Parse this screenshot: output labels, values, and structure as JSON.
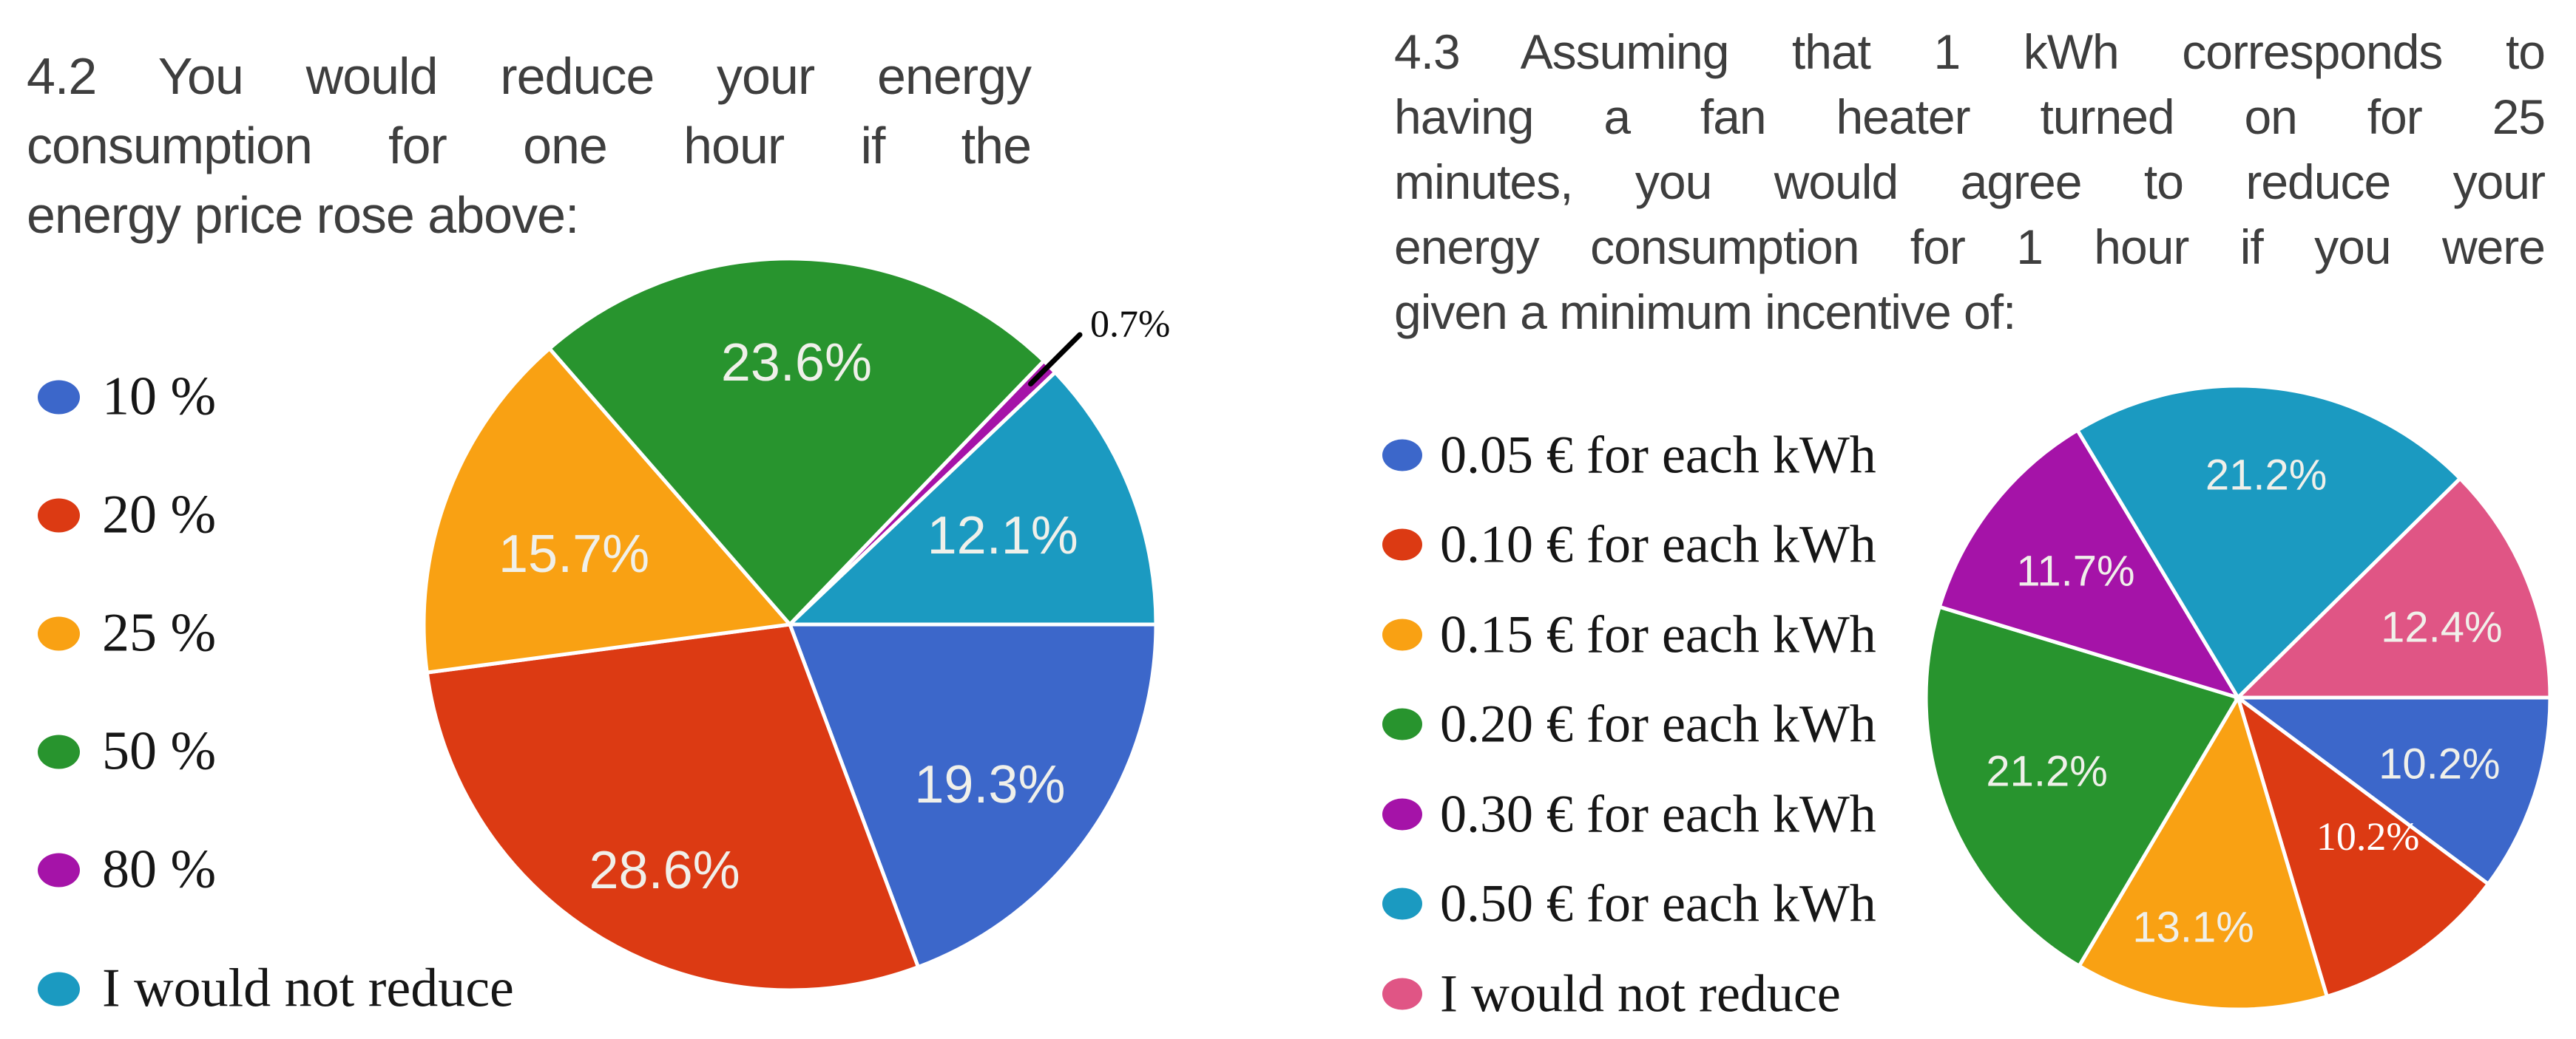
{
  "page": {
    "background_color": "#ffffff",
    "title_color": "#3e3e3e",
    "legend_text_color": "#161616",
    "slice_label_color": "#f0f0ea"
  },
  "chart_data": [
    {
      "type": "pie",
      "title": "4.2 You would reduce your energy consumption for one hour if the energy price rose above:",
      "title_lines": [
        "4.2 You would reduce your energy",
        "consumption for one hour if the",
        "energy price rose above:"
      ],
      "legend_position": "left",
      "categories": [
        "10 %",
        "20 %",
        "25 %",
        "50 %",
        "80 %",
        "I would not reduce"
      ],
      "values": [
        19.3,
        28.6,
        15.7,
        23.6,
        0.7,
        12.1
      ],
      "labels": [
        "19.3%",
        "28.6%",
        "15.7%",
        "23.6%",
        "0.7%",
        "12.1%"
      ],
      "colors": [
        "#3c67ca",
        "#dc3a13",
        "#f9a113",
        "#28942e",
        "#a513a8",
        "#1b9ac1"
      ],
      "start_angle": "3-oclock-clockwise",
      "label_layout": [
        {
          "r": 0.7,
          "angle": 38.7
        },
        {
          "r": 0.754,
          "angle": 117
        },
        {
          "r": 0.62,
          "angle": 198
        },
        {
          "r": 0.715,
          "angle": null
        },
        {
          "r": 1.16,
          "angle": 315,
          "style": "callout"
        },
        {
          "r": 0.63,
          "angle": 337.3
        }
      ],
      "callout": {
        "slice": 4,
        "line_r": [
          0.93,
          1.12
        ],
        "line_width": 7,
        "line_color": "#000000"
      }
    },
    {
      "type": "pie",
      "title": "4.3 Assuming that 1 kWh corresponds to having a fan heater turned on for 25 minutes, you would agree to reduce your energy consumption for 1 hour if you were given a minimum incentive of:",
      "title_lines": [
        "4.3 Assuming that 1 kWh corresponds to",
        "having a fan heater turned on for 25",
        "minutes, you would agree to reduce your",
        "energy consumption for 1 hour if you were",
        "given a minimum incentive of:"
      ],
      "legend_position": "left",
      "categories": [
        "0.05 € for each kWh",
        "0.10 € for each kWh",
        "0.15 € for each kWh",
        "0.20 € for each kWh",
        "0.30 € for each kWh",
        "0.50 € for each kWh",
        "I would not reduce"
      ],
      "values": [
        10.2,
        10.2,
        13.1,
        21.2,
        11.7,
        21.2,
        12.4
      ],
      "labels": [
        "10.2%",
        "10.2%",
        "13.1%",
        "21.2%",
        "11.7%",
        "21.2%",
        "12.4%"
      ],
      "colors": [
        "#3c67ca",
        "#dc3a13",
        "#f9a113",
        "#28942e",
        "#a513a8",
        "#1b9ac1",
        "#e05585"
      ],
      "start_angle": "3-oclock-clockwise",
      "label_layout": [
        {
          "r": 0.68,
          "angle": null
        },
        {
          "r": 0.61,
          "angle": 47,
          "style": "serif-white"
        },
        {
          "r": 0.75,
          "angle": 101
        },
        {
          "r": 0.657,
          "angle": null
        },
        {
          "r": 0.66,
          "angle": null
        },
        {
          "r": 0.72,
          "angle": null
        },
        {
          "r": 0.69,
          "angle": 341
        }
      ]
    }
  ]
}
